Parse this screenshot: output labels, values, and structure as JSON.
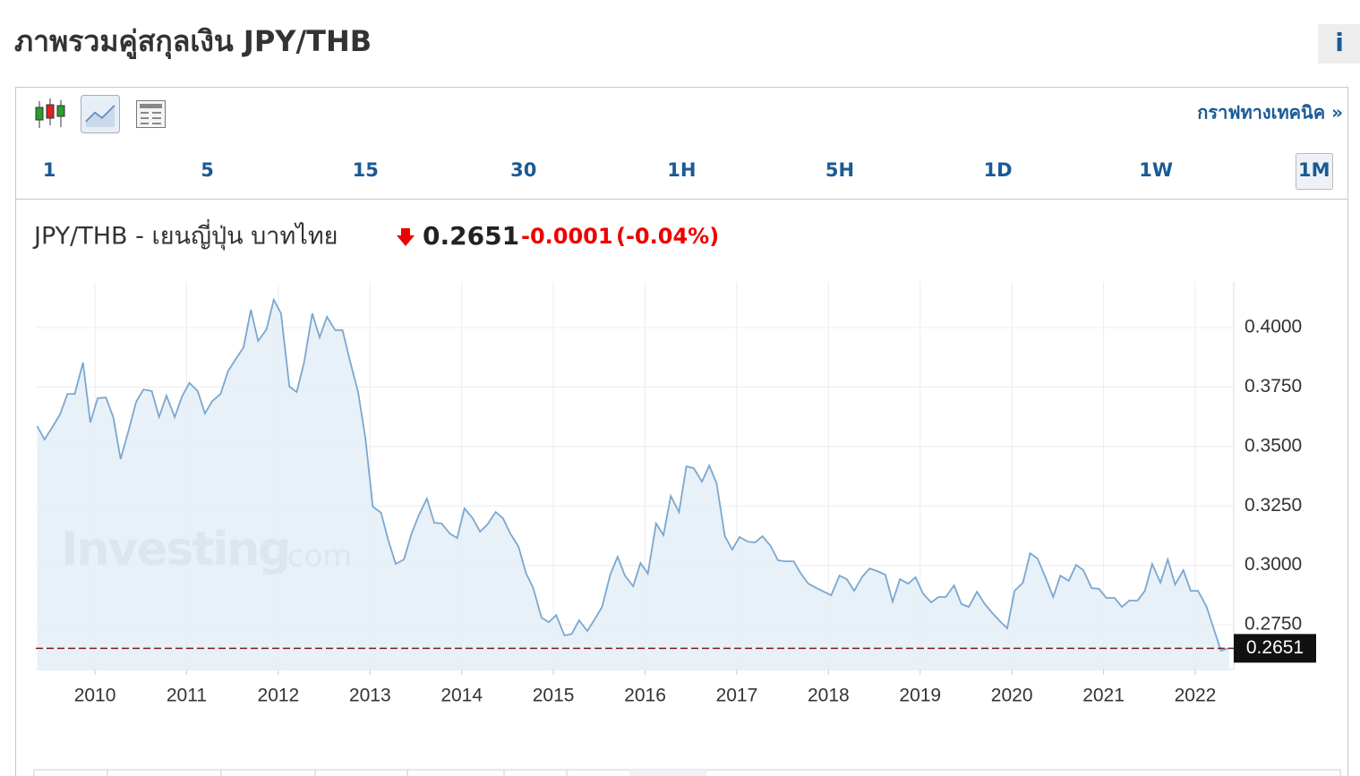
{
  "header": {
    "title": "ภาพรวมคู่สกุลเงิน JPY/THB",
    "info_button": "i"
  },
  "toolbar": {
    "technical_link": "กราฟทางเทคนิค »",
    "timeframes": [
      "1",
      "5",
      "15",
      "30",
      "1H",
      "5H",
      "1D",
      "1W",
      "1M"
    ]
  },
  "quote": {
    "name": "JPY/THB - เยนญี่ปุ่น บาทไทย",
    "price": 0.2651,
    "change": -0.0001,
    "change_percent": "(-0.04%)"
  },
  "watermark": {
    "brand": "Investing",
    "suffix": ".com"
  },
  "chart_data": {
    "type": "area",
    "color": "#7ba7cf",
    "fill": "#e6eef7",
    "grid": true,
    "x": [
      2009.37,
      2009.45,
      2009.53,
      2009.62,
      2009.7,
      2009.78,
      2009.87,
      2009.95,
      2010.03,
      2010.12,
      2010.2,
      2010.28,
      2010.37,
      2010.45,
      2010.53,
      2010.62,
      2010.7,
      2010.78,
      2010.87,
      2010.95,
      2011.03,
      2011.12,
      2011.2,
      2011.28,
      2011.37,
      2011.45,
      2011.53,
      2011.62,
      2011.7,
      2011.78,
      2011.87,
      2011.95,
      2012.03,
      2012.12,
      2012.2,
      2012.28,
      2012.37,
      2012.45,
      2012.53,
      2012.62,
      2012.7,
      2012.78,
      2012.87,
      2012.95,
      2013.03,
      2013.12,
      2013.2,
      2013.28,
      2013.37,
      2013.45,
      2013.53,
      2013.62,
      2013.7,
      2013.78,
      2013.87,
      2013.95,
      2014.03,
      2014.12,
      2014.2,
      2014.28,
      2014.37,
      2014.45,
      2014.53,
      2014.62,
      2014.7,
      2014.78,
      2014.87,
      2014.95,
      2015.03,
      2015.12,
      2015.2,
      2015.28,
      2015.37,
      2015.45,
      2015.53,
      2015.62,
      2015.7,
      2015.78,
      2015.87,
      2015.95,
      2016.03,
      2016.12,
      2016.2,
      2016.28,
      2016.37,
      2016.45,
      2016.53,
      2016.62,
      2016.7,
      2016.78,
      2016.87,
      2016.95,
      2017.03,
      2017.12,
      2017.2,
      2017.28,
      2017.37,
      2017.45,
      2017.53,
      2017.62,
      2017.7,
      2017.78,
      2017.87,
      2017.95,
      2018.03,
      2018.12,
      2018.2,
      2018.28,
      2018.37,
      2018.45,
      2018.53,
      2018.62,
      2018.7,
      2018.78,
      2018.87,
      2018.95,
      2019.03,
      2019.12,
      2019.2,
      2019.28,
      2019.37,
      2019.45,
      2019.53,
      2019.62,
      2019.7,
      2019.78,
      2019.87,
      2019.95,
      2020.03,
      2020.12,
      2020.2,
      2020.28,
      2020.37,
      2020.45,
      2020.53,
      2020.62,
      2020.7,
      2020.78,
      2020.87,
      2020.95,
      2021.03,
      2021.12,
      2021.2,
      2021.28,
      2021.37,
      2021.45,
      2021.53,
      2021.62,
      2021.7,
      2021.78,
      2021.87,
      2021.95,
      2022.03,
      2022.12,
      2022.2,
      2022.28,
      2022.37
    ],
    "values": [
      0.3586,
      0.3529,
      0.3578,
      0.3635,
      0.3721,
      0.3721,
      0.3853,
      0.3601,
      0.3703,
      0.3706,
      0.3624,
      0.3447,
      0.3571,
      0.3688,
      0.374,
      0.3733,
      0.3624,
      0.3714,
      0.3624,
      0.371,
      0.3767,
      0.3733,
      0.3639,
      0.3691,
      0.3721,
      0.3816,
      0.3864,
      0.3917,
      0.4075,
      0.3944,
      0.3992,
      0.4117,
      0.406,
      0.3752,
      0.3729,
      0.3853,
      0.406,
      0.3959,
      0.4045,
      0.3989,
      0.3989,
      0.3861,
      0.3729,
      0.3533,
      0.3247,
      0.3221,
      0.3104,
      0.3006,
      0.3025,
      0.313,
      0.3209,
      0.3281,
      0.3179,
      0.3176,
      0.3134,
      0.3115,
      0.324,
      0.3198,
      0.3142,
      0.3172,
      0.3224,
      0.3198,
      0.3134,
      0.3078,
      0.2968,
      0.2904,
      0.278,
      0.2761,
      0.2791,
      0.2705,
      0.2712,
      0.2769,
      0.2724,
      0.2773,
      0.2825,
      0.2961,
      0.3036,
      0.2957,
      0.2912,
      0.301,
      0.2965,
      0.3176,
      0.3127,
      0.3292,
      0.3224,
      0.3416,
      0.3409,
      0.3352,
      0.342,
      0.3345,
      0.3123,
      0.3066,
      0.3119,
      0.31,
      0.3096,
      0.3123,
      0.3081,
      0.3021,
      0.3017,
      0.3017,
      0.2965,
      0.2923,
      0.2904,
      0.2889,
      0.2874,
      0.2957,
      0.2942,
      0.2893,
      0.2953,
      0.2987,
      0.2976,
      0.2961,
      0.2848,
      0.2942,
      0.2923,
      0.295,
      0.2882,
      0.2844,
      0.2867,
      0.2867,
      0.2916,
      0.2837,
      0.2825,
      0.2889,
      0.284,
      0.2803,
      0.2765,
      0.2735,
      0.2893,
      0.2927,
      0.3051,
      0.3029,
      0.2946,
      0.2867,
      0.2957,
      0.2935,
      0.3002,
      0.298,
      0.2904,
      0.2901,
      0.2863,
      0.2863,
      0.2825,
      0.2852,
      0.2852,
      0.2893,
      0.3006,
      0.2927,
      0.3025,
      0.2919,
      0.298,
      0.2893,
      0.2893,
      0.2829,
      0.2735,
      0.2641,
      0.2652
    ],
    "xlim": [
      2009.355,
      2022.42
    ],
    "ylim": [
      0.2562,
      0.4192
    ],
    "xticks": [
      2010,
      2011,
      2012,
      2013,
      2014,
      2015,
      2016,
      2017,
      2018,
      2019,
      2020,
      2021,
      2022
    ],
    "yticks": [
      {
        "value": 0.275,
        "label": "0.2750"
      },
      {
        "value": 0.3,
        "label": "0.3000"
      },
      {
        "value": 0.325,
        "label": "0.3250"
      },
      {
        "value": 0.35,
        "label": "0.3500"
      },
      {
        "value": 0.375,
        "label": "0.3750"
      },
      {
        "value": 0.4,
        "label": "0.4000"
      }
    ]
  }
}
